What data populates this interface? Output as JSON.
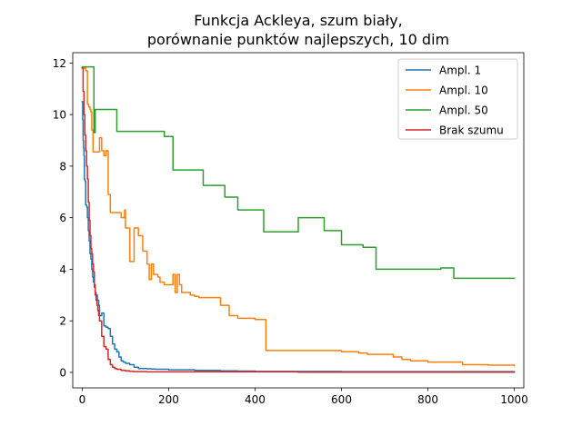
{
  "chart_data": {
    "type": "line",
    "title_lines": [
      "Funkcja Ackleya, szum biały,",
      "porównanie punktów najlepszych, 10 dim"
    ],
    "xlabel": "",
    "ylabel": "",
    "xlim": [
      -22,
      1022
    ],
    "ylim": [
      -0.6,
      12.4
    ],
    "xticks": [
      0,
      200,
      400,
      600,
      800,
      1000
    ],
    "yticks": [
      0,
      2,
      4,
      6,
      8,
      10,
      12
    ],
    "grid": false,
    "legend_position": "top-right",
    "series": [
      {
        "name": "Ampl. 1",
        "color": "#1f77b4",
        "step": true,
        "x": [
          0,
          1,
          2,
          3,
          4,
          5,
          6,
          7,
          8,
          10,
          11,
          12,
          14,
          16,
          18,
          20,
          22,
          24,
          26,
          28,
          30,
          32,
          35,
          38,
          40,
          45,
          50,
          55,
          60,
          65,
          70,
          75,
          80,
          85,
          90,
          95,
          100,
          110,
          120,
          130,
          140,
          150,
          160,
          170,
          180,
          200,
          220,
          260,
          320,
          360,
          400,
          500,
          600,
          700,
          800,
          900,
          1000
        ],
        "y": [
          10.5,
          9.8,
          9.0,
          8.7,
          8.4,
          7.5,
          7.45,
          7.4,
          6.5,
          6.45,
          6.4,
          6.0,
          5.5,
          5.1,
          4.6,
          4.4,
          4.0,
          3.7,
          3.5,
          3.3,
          3.1,
          3.0,
          2.8,
          2.6,
          2.2,
          2.3,
          1.8,
          1.75,
          1.7,
          1.4,
          1.1,
          0.9,
          0.8,
          0.6,
          0.45,
          0.4,
          0.35,
          0.3,
          0.2,
          0.15,
          0.15,
          0.14,
          0.13,
          0.12,
          0.12,
          0.1,
          0.1,
          0.08,
          0.06,
          0.05,
          0.04,
          0.04,
          0.03,
          0.03,
          0.03,
          0.03,
          0.03
        ]
      },
      {
        "name": "Ampl. 10",
        "color": "#ff7f0e",
        "step": true,
        "x": [
          0,
          5,
          8,
          12,
          15,
          18,
          20,
          22,
          25,
          30,
          40,
          45,
          50,
          55,
          60,
          65,
          70,
          80,
          90,
          98,
          100,
          105,
          110,
          115,
          120,
          125,
          130,
          135,
          140,
          150,
          155,
          160,
          165,
          170,
          175,
          180,
          190,
          200,
          210,
          215,
          220,
          225,
          230,
          240,
          250,
          260,
          270,
          300,
          320,
          340,
          360,
          380,
          400,
          420,
          425,
          500,
          560,
          600,
          640,
          660,
          700,
          720,
          740,
          760,
          800,
          880,
          940,
          1000
        ],
        "y": [
          11.8,
          11.8,
          11.7,
          10.4,
          10.3,
          10.2,
          10.1,
          9.4,
          8.55,
          8.55,
          9.1,
          8.6,
          8.4,
          8.6,
          6.9,
          6.2,
          6.2,
          6.2,
          6.0,
          6.3,
          5.6,
          5.6,
          4.3,
          4.3,
          5.6,
          5.6,
          5.3,
          5.3,
          4.7,
          4.2,
          3.6,
          4.2,
          3.8,
          3.8,
          3.7,
          3.5,
          3.4,
          3.4,
          3.8,
          3.1,
          3.8,
          3.4,
          3.1,
          3.1,
          3.0,
          2.95,
          2.9,
          2.9,
          2.6,
          2.2,
          2.1,
          2.1,
          2.05,
          2.05,
          0.85,
          0.85,
          0.85,
          0.8,
          0.75,
          0.7,
          0.7,
          0.6,
          0.5,
          0.45,
          0.4,
          0.3,
          0.28,
          0.25
        ]
      },
      {
        "name": "Ampl. 50",
        "color": "#2ca02c",
        "step": true,
        "x": [
          0,
          25,
          27,
          30,
          35,
          40,
          60,
          80,
          100,
          120,
          140,
          160,
          180,
          190,
          200,
          210,
          220,
          240,
          260,
          280,
          300,
          330,
          360,
          400,
          420,
          440,
          460,
          480,
          500,
          540,
          560,
          600,
          640,
          650,
          680,
          700,
          720,
          760,
          800,
          830,
          860,
          900,
          1000
        ],
        "y": [
          11.85,
          11.85,
          9.3,
          10.2,
          10.2,
          10.2,
          10.2,
          9.35,
          9.35,
          9.35,
          9.35,
          9.35,
          9.35,
          9.15,
          9.15,
          7.85,
          7.85,
          7.85,
          7.85,
          7.25,
          7.25,
          6.8,
          6.3,
          6.3,
          5.45,
          5.45,
          5.45,
          5.45,
          6.0,
          6.0,
          5.5,
          4.95,
          4.95,
          4.85,
          4.0,
          4.0,
          4.0,
          4.0,
          4.0,
          4.05,
          3.65,
          3.65,
          3.65
        ]
      },
      {
        "name": "Brak szumu",
        "color": "#d62728",
        "step": true,
        "x": [
          0,
          2,
          4,
          6,
          8,
          10,
          12,
          14,
          16,
          18,
          20,
          22,
          24,
          26,
          28,
          30,
          32,
          34,
          36,
          38,
          40,
          45,
          50,
          55,
          60,
          65,
          70,
          75,
          80,
          90,
          100,
          110,
          120,
          150,
          200,
          300,
          400,
          500,
          600,
          800,
          1000
        ],
        "y": [
          11.8,
          10.9,
          10.0,
          9.2,
          8.6,
          8.0,
          7.5,
          6.6,
          5.9,
          5.3,
          4.8,
          4.6,
          4.2,
          3.9,
          3.4,
          3.0,
          2.8,
          2.6,
          2.4,
          2.2,
          2.0,
          1.4,
          1.0,
          0.9,
          0.5,
          0.3,
          0.2,
          0.15,
          0.12,
          0.08,
          0.06,
          0.04,
          0.03,
          0.02,
          0.02,
          0.02,
          0.02,
          0.01,
          0.01,
          0.01,
          0.01
        ]
      }
    ]
  }
}
